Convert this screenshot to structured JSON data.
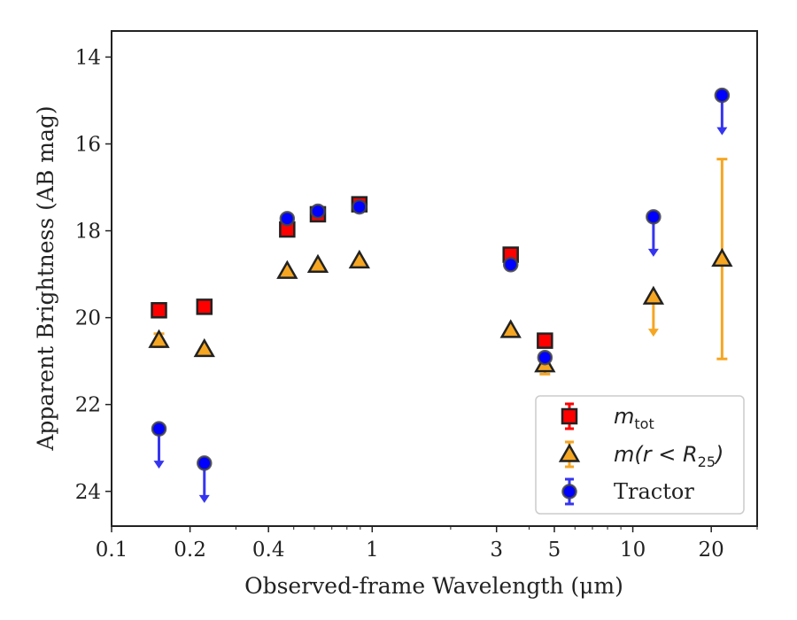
{
  "chart_data": {
    "type": "scatter",
    "title": "",
    "xlabel": "Observed-frame Wavelength (μm)",
    "ylabel": "Apparent Brightness (AB mag)",
    "x_scale": "log",
    "xlim": [
      0.1,
      30
    ],
    "ylim": [
      24.8,
      13.4
    ],
    "y_inverted": true,
    "x_ticks": [
      0.1,
      0.2,
      0.4,
      1,
      3,
      5,
      10,
      20
    ],
    "x_tick_labels": [
      "0.1",
      "0.2",
      "0.4",
      "1",
      "3",
      "5",
      "10",
      "20"
    ],
    "y_ticks": [
      14,
      16,
      18,
      20,
      22,
      24
    ],
    "y_tick_labels": [
      "14",
      "16",
      "18",
      "20",
      "22",
      "24"
    ],
    "grid": false,
    "legend_position": "lower-right",
    "series": [
      {
        "key": "mtot",
        "name": "m_tot",
        "legend_main": "m",
        "legend_sub": "tot",
        "marker": "square",
        "color": "#ff0000",
        "edge_color": "#222222",
        "points": [
          {
            "x": 0.152,
            "y": 19.83
          },
          {
            "x": 0.227,
            "y": 19.75
          },
          {
            "x": 0.472,
            "y": 17.97
          },
          {
            "x": 0.619,
            "y": 17.62
          },
          {
            "x": 0.893,
            "y": 17.39
          },
          {
            "x": 3.4,
            "y": 18.55
          },
          {
            "x": 4.6,
            "y": 20.53
          }
        ]
      },
      {
        "key": "mr25",
        "name": "m(r < R_25)",
        "legend_main": "m(r < R",
        "legend_sub": "25",
        "legend_tail": ")",
        "marker": "triangle",
        "color": "#f5a623",
        "edge_color": "#222222",
        "points": [
          {
            "x": 0.152,
            "y": 20.52,
            "yerr": 0.15
          },
          {
            "x": 0.227,
            "y": 20.73
          },
          {
            "x": 0.472,
            "y": 18.93
          },
          {
            "x": 0.619,
            "y": 18.79
          },
          {
            "x": 0.893,
            "y": 18.69
          },
          {
            "x": 3.4,
            "y": 20.29
          },
          {
            "x": 4.6,
            "y": 21.08,
            "yerr": 0.22
          },
          {
            "x": 12.0,
            "y": 19.52,
            "upper_limit": true
          },
          {
            "x": 22.0,
            "y": 18.65,
            "yerr_low": 2.3,
            "yerr_high": 2.3
          }
        ]
      },
      {
        "key": "tractor",
        "name": "Tractor",
        "legend_main": "Tractor",
        "marker": "circle",
        "color": "#0000ff",
        "edge_color": "#444444",
        "points": [
          {
            "x": 0.152,
            "y": 22.56,
            "upper_limit": true
          },
          {
            "x": 0.227,
            "y": 23.35,
            "upper_limit": true
          },
          {
            "x": 0.472,
            "y": 17.72
          },
          {
            "x": 0.619,
            "y": 17.55
          },
          {
            "x": 0.893,
            "y": 17.45
          },
          {
            "x": 3.4,
            "y": 18.78
          },
          {
            "x": 4.6,
            "y": 20.92
          },
          {
            "x": 12.0,
            "y": 17.68,
            "upper_limit": true
          },
          {
            "x": 22.0,
            "y": 14.88,
            "upper_limit": true
          }
        ]
      }
    ]
  }
}
